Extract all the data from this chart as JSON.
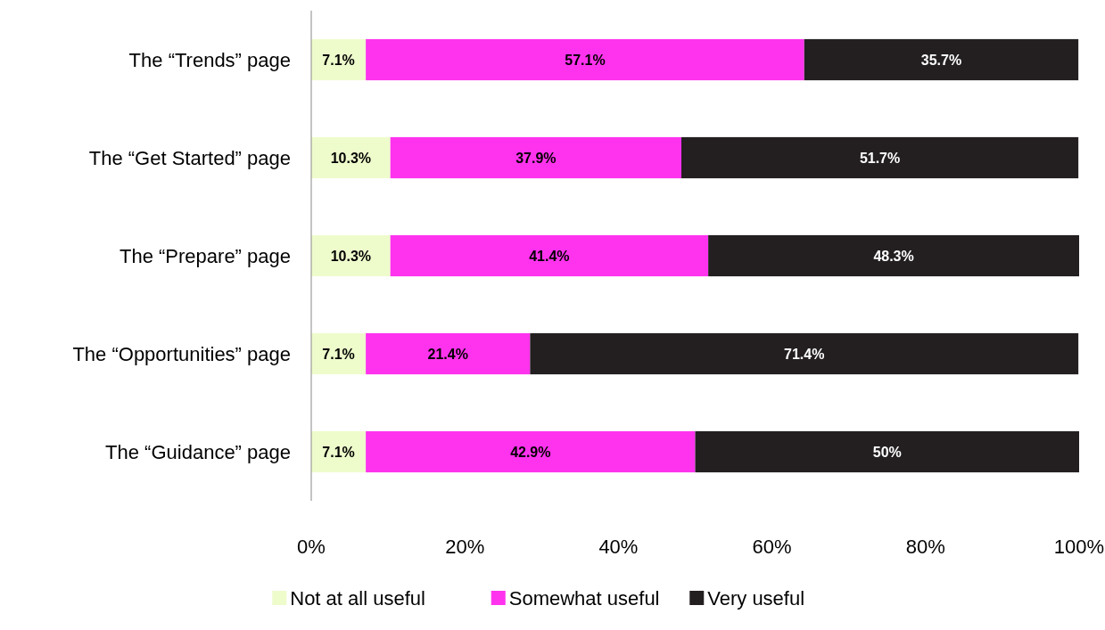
{
  "chart_data": {
    "type": "bar",
    "orientation": "horizontal",
    "stacked": true,
    "categories": [
      "The “Trends” page",
      "The “Get Started” page",
      "The “Prepare” page",
      "The “Opportunities” page",
      "The “Guidance” page"
    ],
    "series": [
      {
        "name": "Not at all useful",
        "color": "#eefccc",
        "values": [
          7.1,
          10.3,
          10.3,
          7.1,
          7.1
        ],
        "value_labels": [
          "7.1%",
          "10.3%",
          "10.3%",
          "7.1%",
          "7.1%"
        ]
      },
      {
        "name": "Somewhat useful",
        "color": "#ff33ee",
        "values": [
          57.1,
          37.9,
          41.4,
          21.4,
          42.9
        ],
        "value_labels": [
          "57.1%",
          "37.9%",
          "41.4%",
          "21.4%",
          "42.9%"
        ]
      },
      {
        "name": "Very useful",
        "color": "#231f20",
        "values": [
          35.7,
          51.7,
          48.3,
          71.4,
          50
        ],
        "value_labels": [
          "35.7%",
          "51.7%",
          "48.3%",
          "71.4%",
          "50%"
        ]
      }
    ],
    "xlim": [
      0,
      100
    ],
    "xticks": [
      {
        "value": 0,
        "label": "0%"
      },
      {
        "value": 20,
        "label": "20%"
      },
      {
        "value": 40,
        "label": "40%"
      },
      {
        "value": 60,
        "label": "60%"
      },
      {
        "value": 80,
        "label": "80%"
      },
      {
        "value": 100,
        "label": "100%"
      }
    ],
    "grid": false,
    "legend": "bottom"
  }
}
